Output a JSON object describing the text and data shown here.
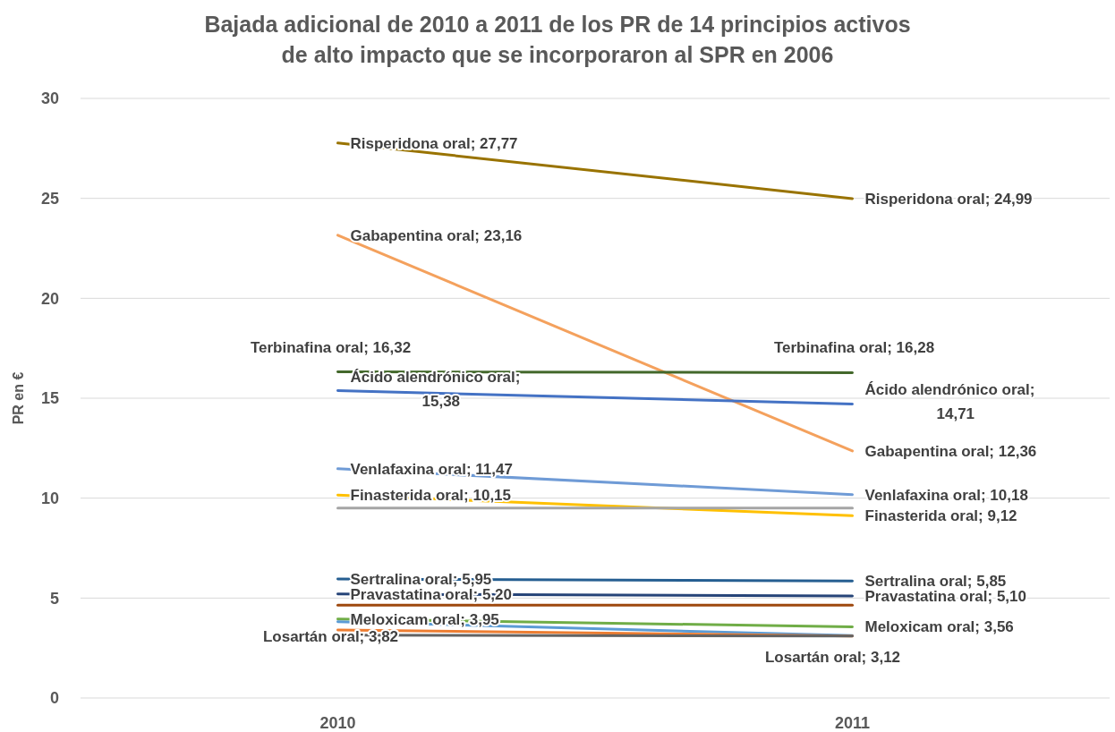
{
  "chart_data": {
    "type": "line",
    "title": "Bajada adicional de 2010 a 2011 de los PR de 14 principios activos de alto impacto que se incorporaron al SPR en 2006",
    "ylabel": "PR en €",
    "categories": [
      "2010",
      "2011"
    ],
    "ylim": [
      0,
      30
    ],
    "yticks": [
      0,
      5,
      10,
      15,
      20,
      25,
      30
    ],
    "grid": "y",
    "marker": "none",
    "series": [
      {
        "color": "#997300",
        "values": [
          27.77,
          24.99
        ],
        "value_labels": [
          "Risperidona oral; 27,77",
          "Risperidona oral; 24,99"
        ]
      },
      {
        "color": "#f4a15d",
        "values": [
          23.16,
          12.36
        ],
        "value_labels": [
          "Gabapentina oral; 23,16",
          "Gabapentina oral; 12,36"
        ]
      },
      {
        "color": "#43682b",
        "values": [
          16.32,
          16.28
        ],
        "value_labels": [
          "Terbinafina oral; 16,32",
          "Terbinafina oral; 16,28"
        ]
      },
      {
        "color": "#4472c4",
        "values": [
          15.38,
          14.71
        ],
        "value_labels": [
          "Ácido alendrónico oral; 15,38",
          "Ácido alendrónico oral; 14,71"
        ]
      },
      {
        "color": "#6f9bd6",
        "values": [
          11.47,
          10.18
        ],
        "value_labels": [
          "Venlafaxina oral; 11,47",
          "Venlafaxina oral; 10,18"
        ]
      },
      {
        "color": "#ffc000",
        "values": [
          10.15,
          9.12
        ],
        "value_labels": [
          "Finasterida oral; 10,15",
          "Finasterida oral; 9,12"
        ]
      },
      {
        "color": "#a5a5a5",
        "values": [
          9.5,
          9.5
        ],
        "value_labels": [
          null,
          null
        ]
      },
      {
        "color": "#255e91",
        "values": [
          5.95,
          5.85
        ],
        "value_labels": [
          "Sertralina oral; 5,95",
          "Sertralina oral; 5,85"
        ]
      },
      {
        "color": "#264478",
        "values": [
          5.2,
          5.1
        ],
        "value_labels": [
          "Pravastatina oral; 5,20",
          "Pravastatina oral; 5,10"
        ]
      },
      {
        "color": "#9e480e",
        "values": [
          4.65,
          4.65
        ],
        "value_labels": [
          null,
          null
        ]
      },
      {
        "color": "#70ad47",
        "values": [
          3.95,
          3.56
        ],
        "value_labels": [
          "Meloxicam oral; 3,95",
          "Meloxicam oral; 3,56"
        ]
      },
      {
        "color": "#5b9bd5",
        "values": [
          3.82,
          3.12
        ],
        "value_labels": [
          "Losartán oral; 3,82",
          "Losartán oral; 3,12"
        ]
      },
      {
        "color": "#ed7d31",
        "values": [
          3.4,
          3.1
        ],
        "value_labels": [
          null,
          null
        ]
      },
      {
        "color": "#636363",
        "values": [
          3.15,
          3.1
        ],
        "value_labels": [
          null,
          null
        ]
      }
    ]
  }
}
